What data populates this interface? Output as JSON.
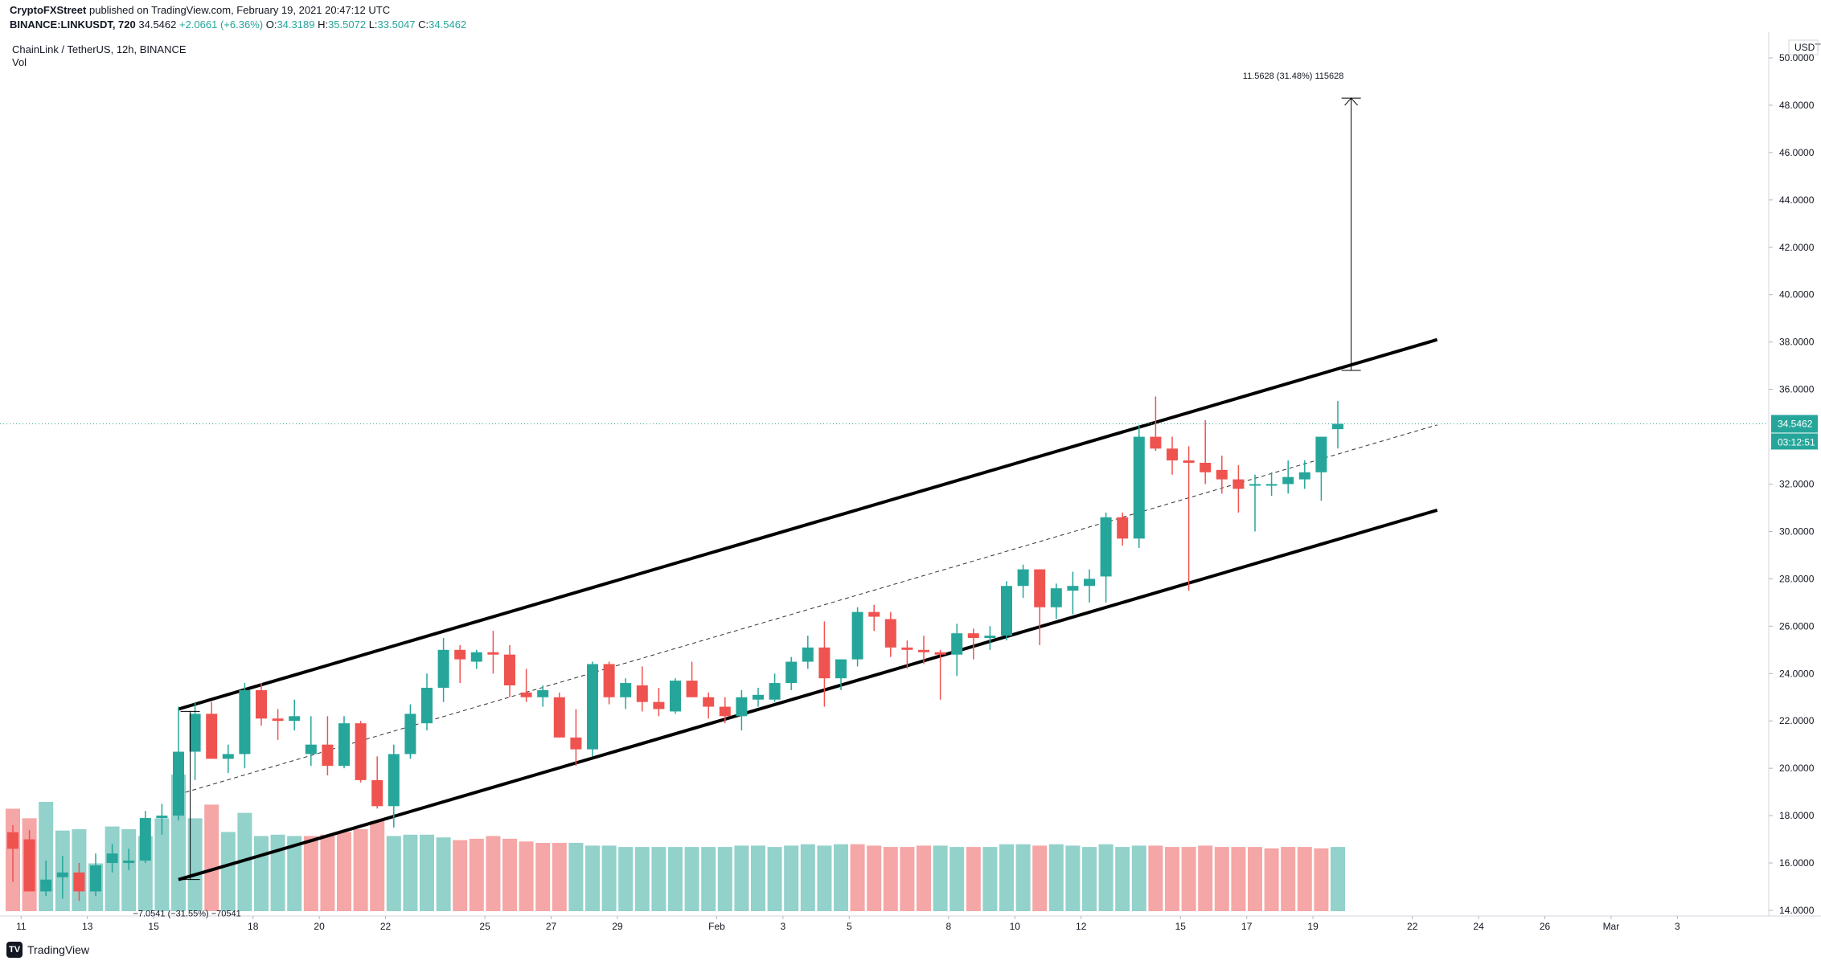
{
  "header": {
    "publisher": "CryptoFXStreet",
    "published_text": "published on TradingView.com, February 19, 2021 20:47:12 UTC",
    "symbol": "BINANCE:LINKUSDT, 720",
    "last": "34.5462",
    "change": "+2.0661 (+6.36%)",
    "o_label": "O:",
    "o": "34.3189",
    "h_label": "H:",
    "h": "35.5072",
    "l_label": "L:",
    "l": "33.5047",
    "c_label": "C:",
    "c": "34.5462",
    "pane_title": "ChainLink / TetherUS, 12h, BINANCE",
    "pane_indicator": "Vol"
  },
  "branding": {
    "label": "TradingView",
    "icon": "tradingview-logo-icon"
  },
  "colors": {
    "up": "#26a69a",
    "down": "#ef5350",
    "vol_up": "#93d1cb",
    "vol_down": "#f5a6a6",
    "price_line": "#26a69a",
    "label_bg": "#26a69a"
  },
  "chart_data": {
    "type": "candlestick",
    "title": "ChainLink / TetherUS, 12h, BINANCE",
    "currency": "USDT",
    "y_axis_ticks": [
      "50.0000",
      "48.0000",
      "46.0000",
      "44.0000",
      "42.0000",
      "40.0000",
      "38.0000",
      "36.0000",
      "32.0000",
      "30.0000",
      "28.0000",
      "26.0000",
      "24.0000",
      "22.0000",
      "20.0000",
      "18.0000",
      "16.0000",
      "14.0000"
    ],
    "y_range": [
      14.0,
      51.0
    ],
    "x_axis_labels": [
      {
        "label": "11",
        "x": 0.5
      },
      {
        "label": "13",
        "x": 4.5
      },
      {
        "label": "15",
        "x": 8.5
      },
      {
        "label": "18",
        "x": 14.5
      },
      {
        "label": "20",
        "x": 18.5
      },
      {
        "label": "22",
        "x": 22.5
      },
      {
        "label": "25",
        "x": 28.5
      },
      {
        "label": "27",
        "x": 32.5
      },
      {
        "label": "29",
        "x": 36.5
      },
      {
        "label": "Feb",
        "x": 42.5
      },
      {
        "label": "3",
        "x": 46.5
      },
      {
        "label": "5",
        "x": 50.5
      },
      {
        "label": "8",
        "x": 56.5
      },
      {
        "label": "10",
        "x": 60.5
      },
      {
        "label": "12",
        "x": 64.5
      },
      {
        "label": "15",
        "x": 70.5
      },
      {
        "label": "17",
        "x": 74.5
      },
      {
        "label": "19",
        "x": 78.5
      },
      {
        "label": "22",
        "x": 84.5
      },
      {
        "label": "24",
        "x": 88.5
      },
      {
        "label": "26",
        "x": 92.5
      },
      {
        "label": "Mar",
        "x": 96.5
      },
      {
        "label": "3",
        "x": 100.5
      }
    ],
    "current_price": "34.5462",
    "countdown": "03:12:51",
    "candles": [
      {
        "o": 17.3,
        "h": 17.6,
        "l": 15.2,
        "c": 16.6
      },
      {
        "o": 17.0,
        "h": 17.4,
        "l": 14.9,
        "c": 14.8
      },
      {
        "o": 14.8,
        "h": 16.1,
        "l": 14.6,
        "c": 15.3
      },
      {
        "o": 15.4,
        "h": 16.3,
        "l": 14.5,
        "c": 15.6
      },
      {
        "o": 15.6,
        "h": 16.0,
        "l": 14.4,
        "c": 14.8
      },
      {
        "o": 14.8,
        "h": 16.4,
        "l": 14.6,
        "c": 15.9
      },
      {
        "o": 16.0,
        "h": 16.8,
        "l": 15.6,
        "c": 16.4
      },
      {
        "o": 16.0,
        "h": 16.6,
        "l": 15.7,
        "c": 16.1
      },
      {
        "o": 16.1,
        "h": 18.2,
        "l": 16.0,
        "c": 17.9
      },
      {
        "o": 17.9,
        "h": 18.5,
        "l": 17.2,
        "c": 18.0
      },
      {
        "o": 18.0,
        "h": 22.6,
        "l": 17.8,
        "c": 20.7
      },
      {
        "o": 20.7,
        "h": 22.8,
        "l": 19.5,
        "c": 22.3
      },
      {
        "o": 22.3,
        "h": 22.8,
        "l": 20.7,
        "c": 20.4
      },
      {
        "o": 20.4,
        "h": 21.0,
        "l": 19.8,
        "c": 20.6
      },
      {
        "o": 20.6,
        "h": 23.6,
        "l": 20.0,
        "c": 23.3
      },
      {
        "o": 23.3,
        "h": 23.6,
        "l": 21.8,
        "c": 22.1
      },
      {
        "o": 22.1,
        "h": 22.5,
        "l": 21.2,
        "c": 22.0
      },
      {
        "o": 22.0,
        "h": 22.9,
        "l": 21.6,
        "c": 22.2
      },
      {
        "o": 20.6,
        "h": 22.2,
        "l": 20.1,
        "c": 21.0
      },
      {
        "o": 21.0,
        "h": 22.2,
        "l": 19.7,
        "c": 20.1
      },
      {
        "o": 20.1,
        "h": 22.2,
        "l": 20.0,
        "c": 21.9
      },
      {
        "o": 21.9,
        "h": 22.0,
        "l": 19.4,
        "c": 19.5
      },
      {
        "o": 19.5,
        "h": 20.5,
        "l": 18.3,
        "c": 18.4
      },
      {
        "o": 18.4,
        "h": 21.0,
        "l": 17.5,
        "c": 20.6
      },
      {
        "o": 20.6,
        "h": 22.7,
        "l": 20.4,
        "c": 22.3
      },
      {
        "o": 21.9,
        "h": 24.0,
        "l": 21.6,
        "c": 23.4
      },
      {
        "o": 23.4,
        "h": 25.5,
        "l": 22.8,
        "c": 25.0
      },
      {
        "o": 25.0,
        "h": 25.2,
        "l": 23.6,
        "c": 24.6
      },
      {
        "o": 24.5,
        "h": 25.0,
        "l": 24.2,
        "c": 24.9
      },
      {
        "o": 24.9,
        "h": 25.8,
        "l": 24.0,
        "c": 24.8
      },
      {
        "o": 24.8,
        "h": 25.2,
        "l": 23.0,
        "c": 23.5
      },
      {
        "o": 23.2,
        "h": 24.2,
        "l": 22.8,
        "c": 23.0
      },
      {
        "o": 23.0,
        "h": 23.5,
        "l": 22.6,
        "c": 23.3
      },
      {
        "o": 23.0,
        "h": 23.2,
        "l": 21.3,
        "c": 21.3
      },
      {
        "o": 21.3,
        "h": 22.5,
        "l": 20.1,
        "c": 20.8
      },
      {
        "o": 20.8,
        "h": 24.5,
        "l": 20.5,
        "c": 24.4
      },
      {
        "o": 24.4,
        "h": 24.5,
        "l": 22.7,
        "c": 23.0
      },
      {
        "o": 23.0,
        "h": 23.8,
        "l": 22.5,
        "c": 23.6
      },
      {
        "o": 23.5,
        "h": 24.3,
        "l": 22.4,
        "c": 22.8
      },
      {
        "o": 22.8,
        "h": 23.4,
        "l": 22.2,
        "c": 22.5
      },
      {
        "o": 22.4,
        "h": 23.8,
        "l": 22.3,
        "c": 23.7
      },
      {
        "o": 23.7,
        "h": 24.5,
        "l": 23.0,
        "c": 23.0
      },
      {
        "o": 23.0,
        "h": 23.2,
        "l": 22.1,
        "c": 22.6
      },
      {
        "o": 22.6,
        "h": 23.0,
        "l": 21.9,
        "c": 22.2
      },
      {
        "o": 22.2,
        "h": 23.3,
        "l": 21.6,
        "c": 23.0
      },
      {
        "o": 22.9,
        "h": 23.4,
        "l": 22.6,
        "c": 23.1
      },
      {
        "o": 22.9,
        "h": 24.0,
        "l": 22.8,
        "c": 23.6
      },
      {
        "o": 23.6,
        "h": 24.7,
        "l": 23.3,
        "c": 24.5
      },
      {
        "o": 24.5,
        "h": 25.6,
        "l": 24.2,
        "c": 25.1
      },
      {
        "o": 25.1,
        "h": 26.2,
        "l": 22.6,
        "c": 23.8
      },
      {
        "o": 23.8,
        "h": 24.6,
        "l": 23.3,
        "c": 24.6
      },
      {
        "o": 24.6,
        "h": 26.8,
        "l": 24.3,
        "c": 26.6
      },
      {
        "o": 26.6,
        "h": 26.9,
        "l": 25.8,
        "c": 26.4
      },
      {
        "o": 26.3,
        "h": 26.6,
        "l": 24.7,
        "c": 25.1
      },
      {
        "o": 25.1,
        "h": 25.4,
        "l": 24.2,
        "c": 25.0
      },
      {
        "o": 25.0,
        "h": 25.6,
        "l": 24.4,
        "c": 24.9
      },
      {
        "o": 24.9,
        "h": 25.0,
        "l": 22.9,
        "c": 24.8
      },
      {
        "o": 24.8,
        "h": 26.1,
        "l": 23.9,
        "c": 25.7
      },
      {
        "o": 25.7,
        "h": 25.9,
        "l": 24.6,
        "c": 25.5
      },
      {
        "o": 25.5,
        "h": 26.0,
        "l": 25.0,
        "c": 25.6
      },
      {
        "o": 25.6,
        "h": 27.9,
        "l": 25.4,
        "c": 27.7
      },
      {
        "o": 27.7,
        "h": 28.6,
        "l": 27.2,
        "c": 28.4
      },
      {
        "o": 28.4,
        "h": 28.4,
        "l": 25.2,
        "c": 26.8
      },
      {
        "o": 26.8,
        "h": 27.8,
        "l": 26.3,
        "c": 27.6
      },
      {
        "o": 27.5,
        "h": 28.3,
        "l": 26.5,
        "c": 27.7
      },
      {
        "o": 27.7,
        "h": 28.4,
        "l": 27.0,
        "c": 28.0
      },
      {
        "o": 28.1,
        "h": 30.8,
        "l": 27.0,
        "c": 30.6
      },
      {
        "o": 30.6,
        "h": 30.8,
        "l": 29.4,
        "c": 29.7
      },
      {
        "o": 29.7,
        "h": 34.5,
        "l": 29.3,
        "c": 34.0
      },
      {
        "o": 34.0,
        "h": 35.7,
        "l": 33.4,
        "c": 33.5
      },
      {
        "o": 33.5,
        "h": 34.0,
        "l": 32.4,
        "c": 33.0
      },
      {
        "o": 33.0,
        "h": 33.6,
        "l": 27.5,
        "c": 32.9
      },
      {
        "o": 32.9,
        "h": 34.7,
        "l": 32.0,
        "c": 32.5
      },
      {
        "o": 32.6,
        "h": 33.2,
        "l": 31.6,
        "c": 32.2
      },
      {
        "o": 32.2,
        "h": 32.8,
        "l": 30.8,
        "c": 31.8
      },
      {
        "o": 32.0,
        "h": 32.4,
        "l": 30.0,
        "c": 32.0
      },
      {
        "o": 32.0,
        "h": 32.5,
        "l": 31.5,
        "c": 32.0
      },
      {
        "o": 32.0,
        "h": 33.0,
        "l": 31.6,
        "c": 32.3
      },
      {
        "o": 32.2,
        "h": 33.0,
        "l": 31.8,
        "c": 32.5
      },
      {
        "o": 32.5,
        "h": 34.0,
        "l": 31.3,
        "c": 34.0
      },
      {
        "o": 34.3189,
        "h": 35.5072,
        "l": 33.5047,
        "c": 34.5462
      }
    ],
    "volume": [
      0.75,
      0.68,
      0.8,
      0.59,
      0.6,
      0.35,
      0.62,
      0.6,
      0.55,
      0.68,
      1.0,
      0.68,
      0.78,
      0.58,
      0.72,
      0.55,
      0.56,
      0.55,
      0.55,
      0.56,
      0.58,
      0.6,
      0.66,
      0.55,
      0.56,
      0.56,
      0.54,
      0.52,
      0.53,
      0.55,
      0.53,
      0.51,
      0.5,
      0.5,
      0.5,
      0.48,
      0.48,
      0.47,
      0.47,
      0.47,
      0.47,
      0.47,
      0.47,
      0.47,
      0.48,
      0.48,
      0.47,
      0.48,
      0.49,
      0.48,
      0.49,
      0.49,
      0.48,
      0.47,
      0.47,
      0.48,
      0.48,
      0.47,
      0.47,
      0.47,
      0.49,
      0.49,
      0.48,
      0.49,
      0.48,
      0.47,
      0.49,
      0.47,
      0.48,
      0.48,
      0.47,
      0.47,
      0.48,
      0.47,
      0.47,
      0.47,
      0.46,
      0.47,
      0.47,
      0.46,
      0.47
    ],
    "volume_colors": [
      "d",
      "d",
      "u",
      "u",
      "u",
      "u",
      "u",
      "u",
      "u",
      "u",
      "u",
      "u",
      "d",
      "u",
      "u",
      "u",
      "u",
      "u",
      "d",
      "d",
      "d",
      "d",
      "d",
      "u",
      "u",
      "u",
      "u",
      "d",
      "d",
      "d",
      "d",
      "d",
      "d",
      "d",
      "u",
      "u",
      "u",
      "u",
      "u",
      "u",
      "u",
      "u",
      "u",
      "u",
      "u",
      "u",
      "u",
      "u",
      "u",
      "u",
      "u",
      "d",
      "d",
      "d",
      "d",
      "d",
      "u",
      "u",
      "d",
      "u",
      "u",
      "u",
      "d",
      "u",
      "u",
      "u",
      "u",
      "u",
      "u",
      "d",
      "d",
      "d",
      "d",
      "d",
      "d",
      "d",
      "d",
      "d",
      "d",
      "d",
      "u"
    ],
    "channel": {
      "upper": [
        [
          10,
          22.5
        ],
        [
          86,
          38.1
        ]
      ],
      "lower": [
        [
          10,
          15.3
        ],
        [
          86,
          30.9
        ]
      ],
      "mid": [
        [
          10,
          18.9
        ],
        [
          86,
          34.5
        ]
      ]
    },
    "measure_bottom": {
      "label": "−7.0541 (−31.55%) −70541",
      "x": 11,
      "from": 22.4,
      "to": 15.3
    },
    "measure_top": {
      "label": "11.5628 (31.48%) 115628",
      "x": 81,
      "from": 36.8,
      "to": 48.3
    }
  }
}
